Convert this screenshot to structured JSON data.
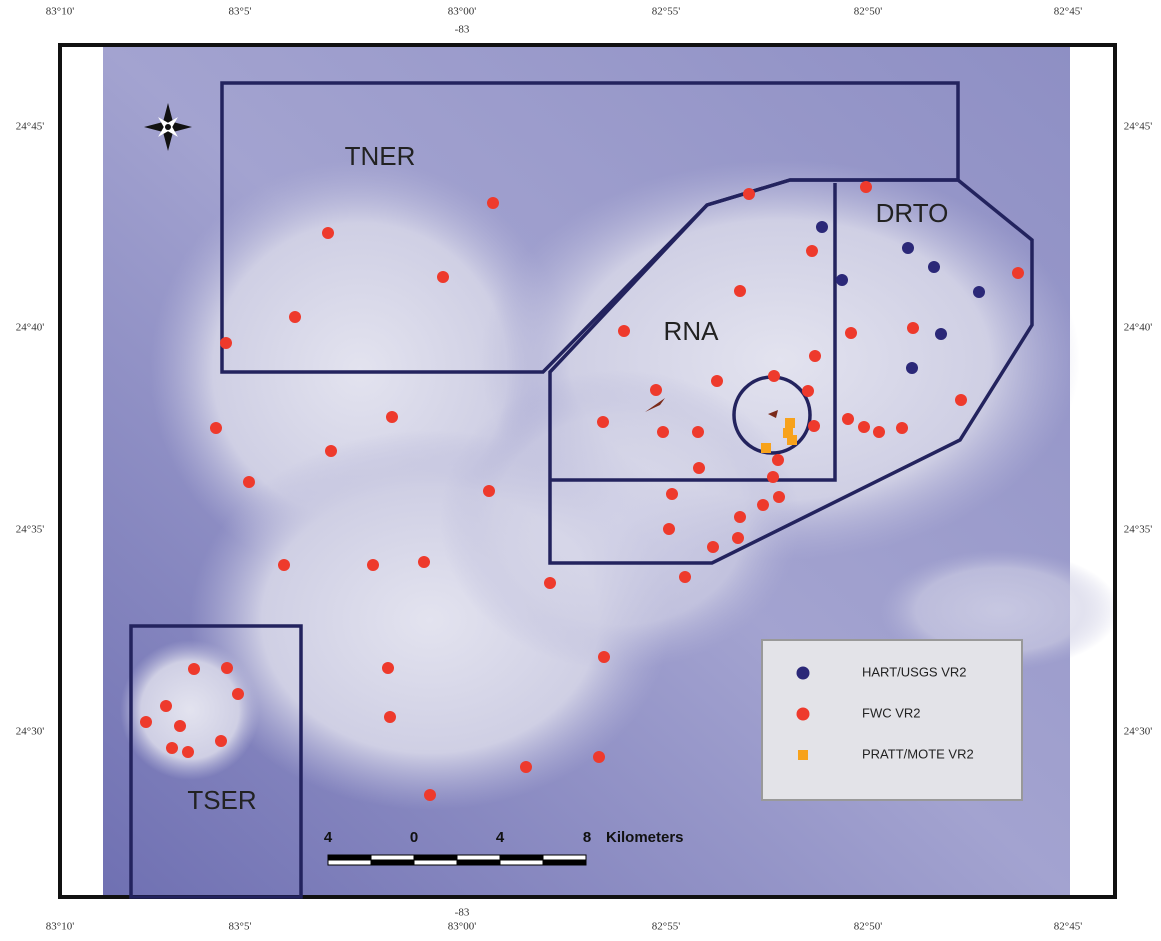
{
  "axes": {
    "top": [
      "83°10'",
      "83°5'",
      "83°00'",
      "82°55'",
      "82°50'",
      "82°45'"
    ],
    "bottom": [
      "83°10'",
      "83°5'",
      "83°00'",
      "82°55'",
      "82°50'",
      "82°45'"
    ],
    "left": [
      "24°45'",
      "24°40'",
      "24°35'",
      "24°30'"
    ],
    "right": [
      "24°45'",
      "24°40'",
      "24°35'",
      "24°30'"
    ],
    "meridian_label": "-83"
  },
  "regions": [
    "TNER",
    "RNA",
    "DRTO",
    "TSER"
  ],
  "legend": [
    {
      "label": "HART/USGS VR2",
      "color": "#2b2878"
    },
    {
      "label": "FWC VR2",
      "color": "#ee3a2c"
    },
    {
      "label": "PRATT/MOTE VR2",
      "color": "#f7a21b"
    }
  ],
  "scale_bar": {
    "ticks": [
      "4",
      "0",
      "4",
      "8"
    ],
    "unit": "Kilometers"
  }
}
